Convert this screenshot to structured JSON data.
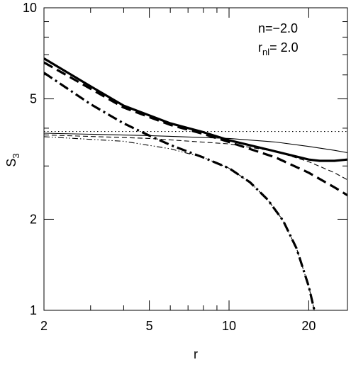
{
  "chart_data": {
    "type": "line",
    "xlabel": "r",
    "ylabel": "S",
    "ylabel_sub": "3",
    "xscale": "log",
    "yscale": "log",
    "xlim": [
      2,
      28
    ],
    "ylim": [
      1,
      10
    ],
    "xticks": [
      {
        "value": 2,
        "label": "2"
      },
      {
        "value": 5,
        "label": "5"
      },
      {
        "value": 10,
        "label": "10"
      },
      {
        "value": 20,
        "label": "20"
      }
    ],
    "yticks": [
      {
        "value": 1,
        "label": "1"
      },
      {
        "value": 2,
        "label": "2"
      },
      {
        "value": 5,
        "label": "5"
      },
      {
        "value": 10,
        "label": "10"
      }
    ],
    "annotation": {
      "line1": "n=−2.0",
      "line2_main": "r",
      "line2_sub": "nl",
      "line2_value": "=  2.0"
    },
    "series": [
      {
        "style": "dotted-thin",
        "x": [
          2,
          28
        ],
        "y": [
          3.9,
          3.9
        ]
      },
      {
        "style": "solid-thin",
        "x": [
          2,
          5,
          10,
          15,
          20,
          25,
          28
        ],
        "y": [
          3.85,
          3.78,
          3.7,
          3.6,
          3.48,
          3.38,
          3.32
        ]
      },
      {
        "style": "dashed-thin",
        "x": [
          2,
          5,
          10,
          15,
          20,
          25,
          28
        ],
        "y": [
          3.8,
          3.7,
          3.55,
          3.35,
          3.1,
          2.85,
          2.7
        ]
      },
      {
        "style": "dashdot-thin",
        "x": [
          2,
          4,
          6,
          8,
          10,
          12,
          14,
          16,
          18,
          20,
          21
        ],
        "y": [
          3.75,
          3.62,
          3.42,
          3.2,
          2.95,
          2.65,
          2.32,
          1.98,
          1.6,
          1.2,
          1.0
        ]
      },
      {
        "style": "solid-thick",
        "x": [
          2,
          3,
          4,
          6,
          8,
          10,
          15,
          20,
          22,
          25,
          28
        ],
        "y": [
          6.8,
          5.5,
          4.75,
          4.15,
          3.88,
          3.65,
          3.35,
          3.15,
          3.12,
          3.12,
          3.15
        ]
      },
      {
        "style": "dashed-thick",
        "x": [
          2,
          3,
          4,
          6,
          8,
          10,
          15,
          20,
          25,
          28
        ],
        "y": [
          6.6,
          5.4,
          4.68,
          4.1,
          3.83,
          3.6,
          3.2,
          2.85,
          2.55,
          2.4
        ]
      },
      {
        "style": "dashdot-thick",
        "x": [
          2,
          3,
          4,
          5,
          6,
          8,
          10,
          12,
          14,
          16,
          18,
          20,
          21
        ],
        "y": [
          6.1,
          4.8,
          4.15,
          3.78,
          3.52,
          3.2,
          2.95,
          2.65,
          2.32,
          1.98,
          1.6,
          1.2,
          1.0
        ]
      }
    ]
  }
}
